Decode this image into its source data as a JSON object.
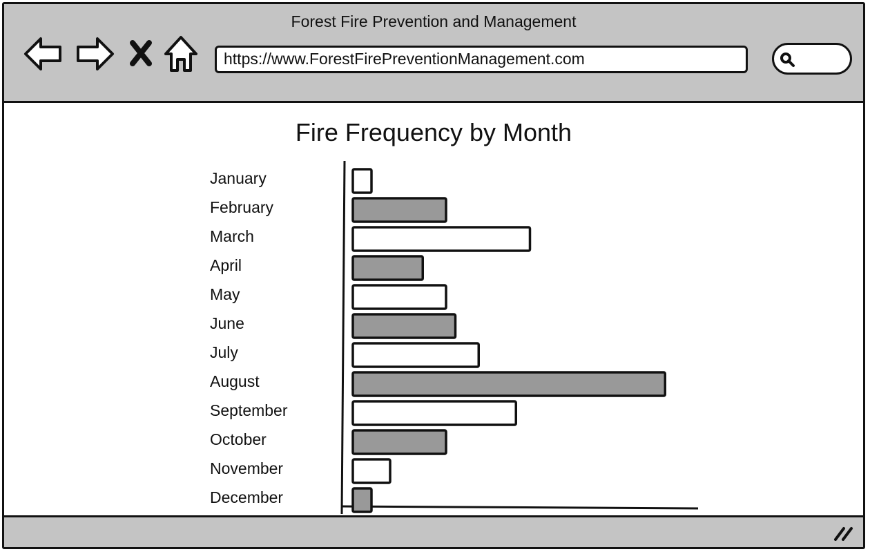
{
  "window": {
    "title": "Forest Fire Prevention and Management"
  },
  "toolbar": {
    "url": "https://www.ForestFirePreventionManagement.com",
    "icons": [
      "back-arrow-icon",
      "forward-arrow-icon",
      "close-icon",
      "home-icon",
      "search-icon"
    ]
  },
  "chart_data": {
    "type": "bar",
    "orientation": "horizontal",
    "title": "Fire Frequency by Month",
    "categories": [
      "January",
      "February",
      "March",
      "April",
      "May",
      "June",
      "July",
      "August",
      "September",
      "October",
      "November",
      "December"
    ],
    "values": [
      2,
      10,
      19,
      7.5,
      10,
      11,
      13.5,
      33.5,
      17.5,
      10,
      4,
      2
    ],
    "xlim": [
      0,
      37
    ],
    "grid": false,
    "bar_colors": [
      "#ffffff",
      "#999999"
    ]
  }
}
